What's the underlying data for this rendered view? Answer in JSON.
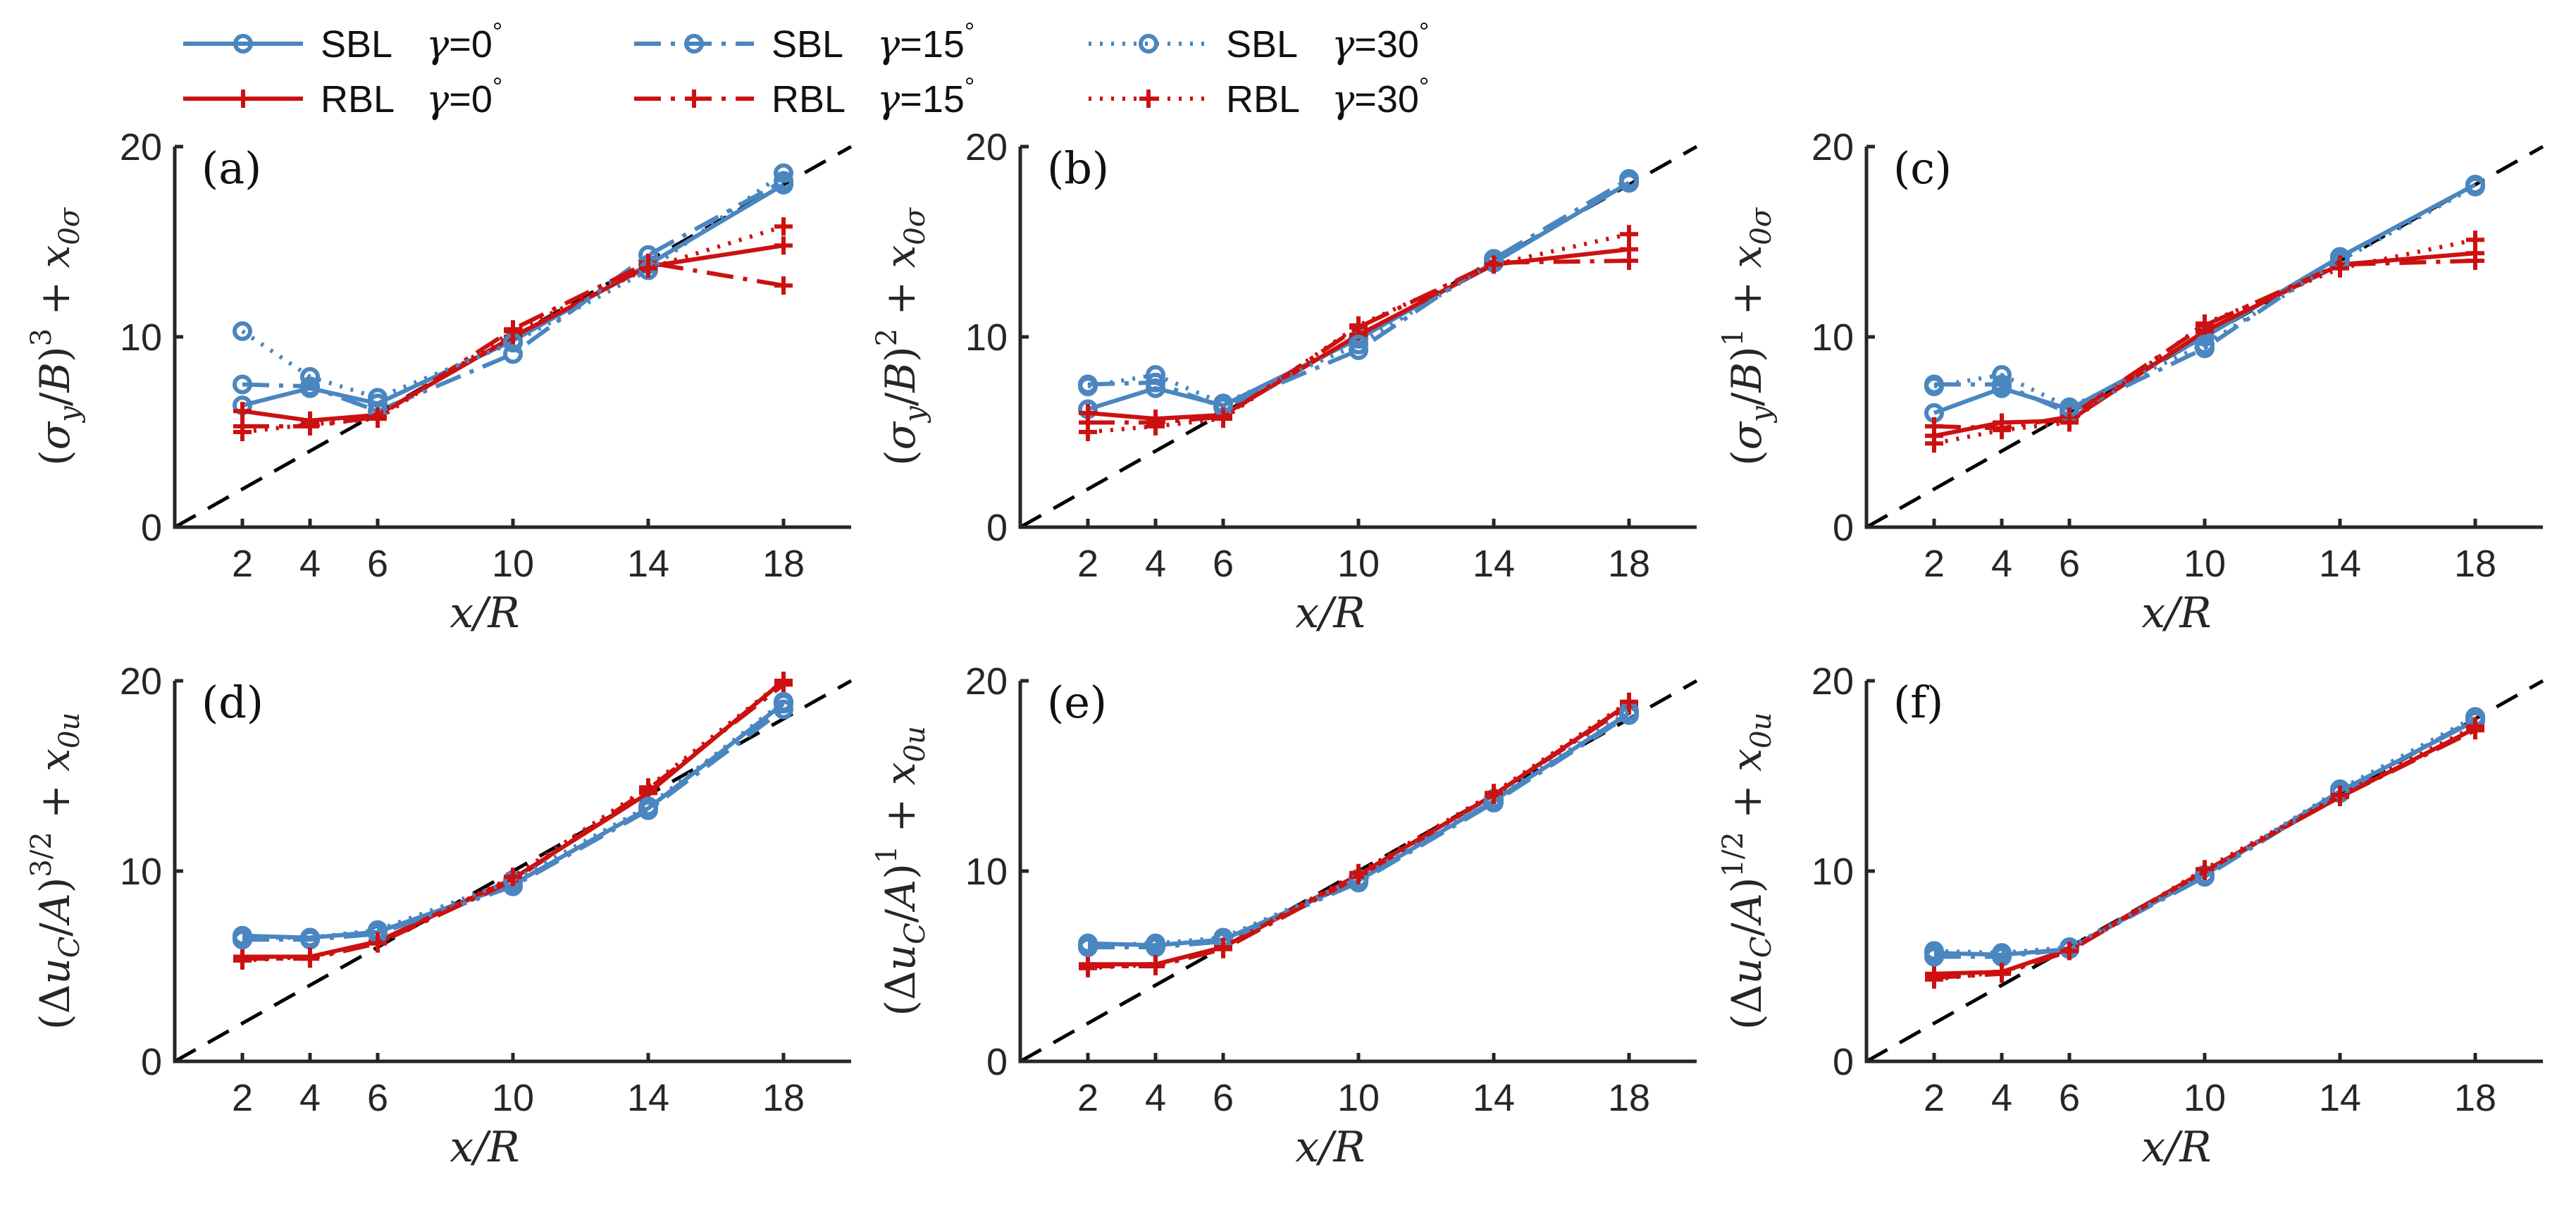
{
  "chart_data": [
    {
      "type": "line",
      "panel_label": "(a)",
      "xlabel": "x/R",
      "ylabel": "(σy/B)^3 + x0σ",
      "xticks": [
        2,
        4,
        6,
        10,
        14,
        18
      ],
      "yticks": [
        0,
        10,
        20
      ],
      "xlim": [
        0,
        20
      ],
      "ylim": [
        0,
        20
      ],
      "reference_line": "y = x",
      "series": [
        {
          "name": "SBL γ=0°",
          "x": [
            2,
            4,
            6,
            10,
            14,
            18
          ],
          "y": [
            6.4,
            7.3,
            6.5,
            9.8,
            13.8,
            18.0
          ]
        },
        {
          "name": "RBL γ=0°",
          "x": [
            2,
            4,
            6,
            10,
            14,
            18
          ],
          "y": [
            6.1,
            5.6,
            5.9,
            10.0,
            13.7,
            14.8
          ]
        },
        {
          "name": "SBL γ=15°",
          "x": [
            2,
            4,
            6,
            10,
            14,
            18
          ],
          "y": [
            7.5,
            7.4,
            6.1,
            9.1,
            14.3,
            18.2
          ]
        },
        {
          "name": "RBL γ=15°",
          "x": [
            2,
            4,
            6,
            10,
            14,
            18
          ],
          "y": [
            5.3,
            5.3,
            5.8,
            10.4,
            13.9,
            12.7
          ]
        },
        {
          "name": "SBL γ=30°",
          "x": [
            2,
            4,
            6,
            10,
            14,
            18
          ],
          "y": [
            10.3,
            7.9,
            6.8,
            9.7,
            13.5,
            18.6
          ]
        },
        {
          "name": "RBL γ=30°",
          "x": [
            2,
            4,
            6,
            10,
            14,
            18
          ],
          "y": [
            5.0,
            5.4,
            5.7,
            10.3,
            13.6,
            15.8
          ]
        }
      ]
    },
    {
      "type": "line",
      "panel_label": "(b)",
      "xlabel": "x/R",
      "ylabel": "(σy/B)^2 + x0σ",
      "xticks": [
        2,
        4,
        6,
        10,
        14,
        18
      ],
      "yticks": [
        0,
        10,
        20
      ],
      "xlim": [
        0,
        20
      ],
      "ylim": [
        0,
        20
      ],
      "reference_line": "y = x",
      "series": [
        {
          "name": "SBL γ=0°",
          "x": [
            2,
            4,
            6,
            10,
            14,
            18
          ],
          "y": [
            6.2,
            7.3,
            6.4,
            9.9,
            13.9,
            18.1
          ]
        },
        {
          "name": "RBL γ=0°",
          "x": [
            2,
            4,
            6,
            10,
            14,
            18
          ],
          "y": [
            6.0,
            5.7,
            5.9,
            10.1,
            13.8,
            14.6
          ]
        },
        {
          "name": "SBL γ=15°",
          "x": [
            2,
            4,
            6,
            10,
            14,
            18
          ],
          "y": [
            7.5,
            7.6,
            6.3,
            9.3,
            14.1,
            18.3
          ]
        },
        {
          "name": "RBL γ=15°",
          "x": [
            2,
            4,
            6,
            10,
            14,
            18
          ],
          "y": [
            5.5,
            5.5,
            5.8,
            10.5,
            13.9,
            14.0
          ]
        },
        {
          "name": "SBL γ=30°",
          "x": [
            2,
            4,
            6,
            10,
            14,
            18
          ],
          "y": [
            7.4,
            8.0,
            6.5,
            9.6,
            13.9,
            18.1
          ]
        },
        {
          "name": "RBL γ=30°",
          "x": [
            2,
            4,
            6,
            10,
            14,
            18
          ],
          "y": [
            5.0,
            5.3,
            5.7,
            10.6,
            13.8,
            15.4
          ]
        }
      ]
    },
    {
      "type": "line",
      "panel_label": "(c)",
      "xlabel": "x/R",
      "ylabel": "(σy/B)^1 + x0σ",
      "xticks": [
        2,
        4,
        6,
        10,
        14,
        18
      ],
      "yticks": [
        0,
        10,
        20
      ],
      "xlim": [
        0,
        20
      ],
      "ylim": [
        0,
        20
      ],
      "reference_line": "y = x",
      "series": [
        {
          "name": "SBL γ=0°",
          "x": [
            2,
            4,
            6,
            10,
            14,
            18
          ],
          "y": [
            6.0,
            7.3,
            6.2,
            10.0,
            14.2,
            18.0
          ]
        },
        {
          "name": "RBL γ=0°",
          "x": [
            2,
            4,
            6,
            10,
            14,
            18
          ],
          "y": [
            4.8,
            5.5,
            5.6,
            10.3,
            13.8,
            14.4
          ]
        },
        {
          "name": "SBL γ=15°",
          "x": [
            2,
            4,
            6,
            10,
            14,
            18
          ],
          "y": [
            7.5,
            7.5,
            6.0,
            9.4,
            14.2,
            18.0
          ]
        },
        {
          "name": "RBL γ=15°",
          "x": [
            2,
            4,
            6,
            10,
            14,
            18
          ],
          "y": [
            5.3,
            5.2,
            5.8,
            10.6,
            13.8,
            14.0
          ]
        },
        {
          "name": "SBL γ=30°",
          "x": [
            2,
            4,
            6,
            10,
            14,
            18
          ],
          "y": [
            7.4,
            8.0,
            6.3,
            9.6,
            14.0,
            17.9
          ]
        },
        {
          "name": "RBL γ=30°",
          "x": [
            2,
            4,
            6,
            10,
            14,
            18
          ],
          "y": [
            4.4,
            5.1,
            5.5,
            10.7,
            13.6,
            15.1
          ]
        }
      ]
    },
    {
      "type": "line",
      "panel_label": "(d)",
      "xlabel": "x/R",
      "ylabel": "(ΔuC/A)^3/2 + x0u",
      "xticks": [
        2,
        4,
        6,
        10,
        14,
        18
      ],
      "yticks": [
        0,
        10,
        20
      ],
      "xlim": [
        0,
        20
      ],
      "ylim": [
        0,
        20
      ],
      "reference_line": "y = x",
      "series": [
        {
          "name": "SBL γ=0°",
          "x": [
            2,
            4,
            6,
            10,
            14,
            18
          ],
          "y": [
            6.6,
            6.5,
            6.8,
            9.3,
            13.3,
            18.8
          ]
        },
        {
          "name": "RBL γ=0°",
          "x": [
            2,
            4,
            6,
            10,
            14,
            18
          ],
          "y": [
            5.5,
            5.5,
            6.3,
            9.6,
            14.1,
            20.0
          ]
        },
        {
          "name": "SBL γ=15°",
          "x": [
            2,
            4,
            6,
            10,
            14,
            18
          ],
          "y": [
            6.4,
            6.4,
            6.7,
            9.2,
            13.2,
            18.5
          ]
        },
        {
          "name": "RBL γ=15°",
          "x": [
            2,
            4,
            6,
            10,
            14,
            18
          ],
          "y": [
            5.4,
            5.4,
            6.2,
            9.5,
            14.3,
            19.8
          ]
        },
        {
          "name": "SBL γ=30°",
          "x": [
            2,
            4,
            6,
            10,
            14,
            18
          ],
          "y": [
            6.5,
            6.5,
            6.9,
            9.5,
            13.4,
            18.9
          ]
        },
        {
          "name": "RBL γ=30°",
          "x": [
            2,
            4,
            6,
            10,
            14,
            18
          ],
          "y": [
            5.3,
            5.5,
            6.2,
            9.7,
            14.4,
            20.0
          ]
        }
      ]
    },
    {
      "type": "line",
      "panel_label": "(e)",
      "xlabel": "x/R",
      "ylabel": "(ΔuC/A)^1 + x0u",
      "xticks": [
        2,
        4,
        6,
        10,
        14,
        18
      ],
      "yticks": [
        0,
        10,
        20
      ],
      "xlim": [
        0,
        20
      ],
      "ylim": [
        0,
        20
      ],
      "reference_line": "y = x",
      "series": [
        {
          "name": "SBL γ=0°",
          "x": [
            2,
            4,
            6,
            10,
            14,
            18
          ],
          "y": [
            6.2,
            6.1,
            6.4,
            9.5,
            13.7,
            18.3
          ]
        },
        {
          "name": "RBL γ=0°",
          "x": [
            2,
            4,
            6,
            10,
            14,
            18
          ],
          "y": [
            5.1,
            5.1,
            6.0,
            9.8,
            14.0,
            18.8
          ]
        },
        {
          "name": "SBL γ=15°",
          "x": [
            2,
            4,
            6,
            10,
            14,
            18
          ],
          "y": [
            6.0,
            6.0,
            6.3,
            9.4,
            13.6,
            18.2
          ]
        },
        {
          "name": "RBL γ=15°",
          "x": [
            2,
            4,
            6,
            10,
            14,
            18
          ],
          "y": [
            5.0,
            5.0,
            5.9,
            9.7,
            14.0,
            18.7
          ]
        },
        {
          "name": "SBL γ=30°",
          "x": [
            2,
            4,
            6,
            10,
            14,
            18
          ],
          "y": [
            6.1,
            6.2,
            6.5,
            9.6,
            13.8,
            18.4
          ]
        },
        {
          "name": "RBL γ=30°",
          "x": [
            2,
            4,
            6,
            10,
            14,
            18
          ],
          "y": [
            4.9,
            5.1,
            6.0,
            9.9,
            14.1,
            18.9
          ]
        }
      ]
    },
    {
      "type": "line",
      "panel_label": "(f)",
      "xlabel": "x/R",
      "ylabel": "(ΔuC/A)^1/2 + x0u",
      "xticks": [
        2,
        4,
        6,
        10,
        14,
        18
      ],
      "yticks": [
        0,
        10,
        20
      ],
      "xlim": [
        0,
        20
      ],
      "ylim": [
        0,
        20
      ],
      "reference_line": "y = x",
      "series": [
        {
          "name": "SBL γ=0°",
          "x": [
            2,
            4,
            6,
            10,
            14,
            18
          ],
          "y": [
            5.7,
            5.6,
            5.9,
            9.8,
            14.2,
            17.9
          ]
        },
        {
          "name": "RBL γ=0°",
          "x": [
            2,
            4,
            6,
            10,
            14,
            18
          ],
          "y": [
            4.6,
            4.7,
            5.9,
            10.0,
            13.9,
            17.5
          ]
        },
        {
          "name": "SBL γ=15°",
          "x": [
            2,
            4,
            6,
            10,
            14,
            18
          ],
          "y": [
            5.5,
            5.5,
            5.9,
            9.7,
            14.1,
            18.0
          ]
        },
        {
          "name": "RBL γ=15°",
          "x": [
            2,
            4,
            6,
            10,
            14,
            18
          ],
          "y": [
            4.4,
            4.6,
            5.8,
            10.0,
            13.9,
            17.4
          ]
        },
        {
          "name": "SBL γ=30°",
          "x": [
            2,
            4,
            6,
            10,
            14,
            18
          ],
          "y": [
            5.8,
            5.7,
            6.0,
            9.8,
            14.3,
            18.1
          ]
        },
        {
          "name": "RBL γ=30°",
          "x": [
            2,
            4,
            6,
            10,
            14,
            18
          ],
          "y": [
            4.3,
            4.7,
            5.8,
            10.1,
            14.0,
            17.6
          ]
        }
      ]
    }
  ],
  "legend": {
    "placement": "top",
    "entries": [
      {
        "group": "SBL",
        "gamma": "γ=0",
        "color": "#4a86c0",
        "dash": "solid"
      },
      {
        "group": "RBL",
        "gamma": "γ=0",
        "color": "#cc1111",
        "dash": "solid"
      },
      {
        "group": "SBL",
        "gamma": "γ=15",
        "color": "#4a86c0",
        "dash": "dashdot"
      },
      {
        "group": "RBL",
        "gamma": "γ=15",
        "color": "#cc1111",
        "dash": "dashdot"
      },
      {
        "group": "SBL",
        "gamma": "γ=30",
        "color": "#4a86c0",
        "dash": "dotted"
      },
      {
        "group": "RBL",
        "gamma": "γ=30",
        "color": "#cc1111",
        "dash": "dotted"
      }
    ]
  },
  "colors": {
    "sbl": "#4a86c0",
    "rbl": "#cc1111",
    "axes": "#262626",
    "reference": "#000000"
  }
}
